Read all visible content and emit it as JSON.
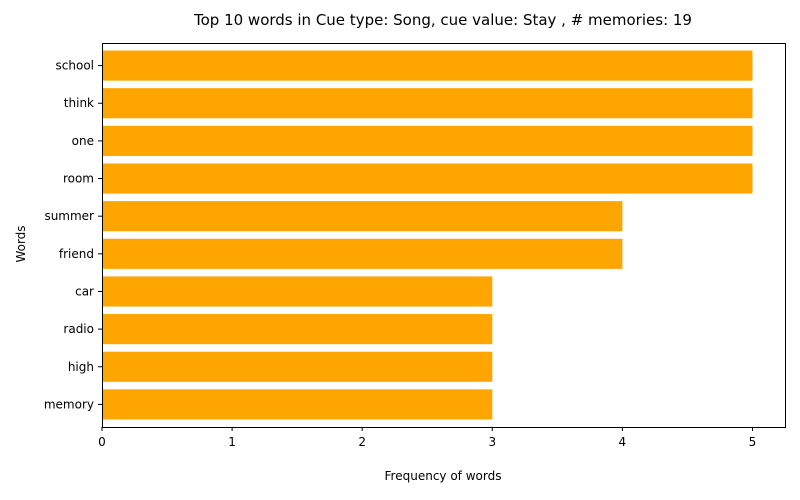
{
  "chart_data": {
    "type": "bar",
    "orientation": "horizontal",
    "title": "Top 10 words in Cue type: Song, cue value: Stay , # memories: 19",
    "xlabel": "Frequency of words",
    "ylabel": "Words",
    "categories": [
      "school",
      "think",
      "one",
      "room",
      "summer",
      "friend",
      "car",
      "radio",
      "high",
      "memory"
    ],
    "values": [
      5,
      5,
      5,
      5,
      4,
      4,
      3,
      3,
      3,
      3
    ],
    "xlim": [
      0,
      5.25
    ],
    "xticks": [
      0,
      1,
      2,
      3,
      4,
      5
    ],
    "bar_color": "#ffa500",
    "grid": false
  }
}
